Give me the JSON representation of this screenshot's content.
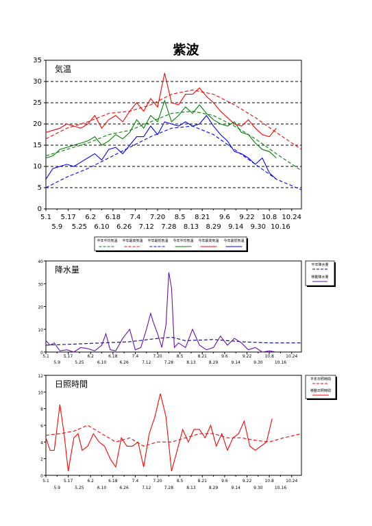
{
  "title": "紫波",
  "chart_data": [
    {
      "type": "line",
      "title": "気温",
      "ylim": [
        0,
        35
      ],
      "yticks": [
        "0",
        "5",
        "10",
        "15",
        "20",
        "25",
        "30",
        "35"
      ],
      "x_tick_labels_row1": [
        "5.1",
        "5.17",
        "6.2",
        "6.18",
        "7.4",
        "7.20",
        "8.5",
        "8.21",
        "9.6",
        "9.22",
        "10.8",
        "10.24"
      ],
      "x_tick_labels_row2": [
        "5.9",
        "5.25",
        "6.10",
        "6.26",
        "7.12",
        "7.28",
        "8.13",
        "8.29",
        "9.14",
        "9.30",
        "10.16"
      ],
      "grid": "horizontal-dashed",
      "legend_position": "bottom",
      "x_range_days": [
        0,
        183
      ],
      "series": [
        {
          "name": "平年平均気温",
          "color": "#008000",
          "style": "dashed",
          "x": [
            0,
            15,
            30,
            45,
            60,
            75,
            90,
            105,
            120,
            135,
            150,
            165,
            183
          ],
          "values": [
            12.5,
            14.0,
            15.5,
            17.5,
            18.5,
            20.5,
            22.5,
            23.0,
            22.0,
            19.5,
            16.5,
            13.0,
            9.0
          ]
        },
        {
          "name": "平年最高気温",
          "color": "#ff0000",
          "style": "dashed",
          "x": [
            0,
            15,
            30,
            45,
            60,
            75,
            90,
            105,
            120,
            135,
            150,
            165,
            183
          ],
          "values": [
            16.5,
            19.0,
            20.5,
            22.5,
            23.0,
            24.5,
            27.0,
            28.0,
            27.0,
            24.5,
            21.5,
            18.0,
            14.0
          ]
        },
        {
          "name": "平年最低気温",
          "color": "#0000ff",
          "style": "dashed",
          "x": [
            0,
            15,
            30,
            45,
            60,
            75,
            90,
            105,
            120,
            135,
            150,
            165,
            183
          ],
          "values": [
            5.0,
            7.5,
            9.5,
            12.0,
            14.5,
            17.0,
            19.0,
            19.5,
            17.5,
            14.0,
            10.5,
            7.0,
            4.5
          ]
        },
        {
          "name": "今年平均気温",
          "color": "#008000",
          "style": "solid",
          "x": [
            0,
            5,
            10,
            15,
            20,
            25,
            30,
            35,
            40,
            45,
            50,
            55,
            60,
            65,
            70,
            75,
            80,
            85,
            90,
            95,
            100,
            105,
            110,
            115,
            120,
            125,
            130,
            135,
            140,
            145,
            150,
            155,
            160,
            165
          ],
          "values": [
            12,
            12.5,
            14,
            14.5,
            15,
            15.5,
            16,
            17,
            15,
            16,
            17.5,
            16.5,
            18,
            21,
            19,
            22,
            20.5,
            25.5,
            20.5,
            22,
            24,
            22.5,
            24.5,
            22.5,
            21,
            20,
            19.5,
            20.5,
            18,
            17.5,
            15.5,
            14,
            13.5,
            12
          ]
        },
        {
          "name": "今年最高気温",
          "color": "#ff0000",
          "style": "solid",
          "x": [
            0,
            5,
            10,
            15,
            20,
            25,
            30,
            35,
            40,
            45,
            50,
            55,
            60,
            65,
            70,
            75,
            80,
            85,
            90,
            95,
            100,
            105,
            110,
            115,
            120,
            125,
            130,
            135,
            140,
            145,
            150,
            155,
            160,
            165
          ],
          "values": [
            18,
            18.5,
            19,
            20,
            19.5,
            19,
            20,
            22,
            19,
            21,
            22,
            20.5,
            23,
            25,
            23,
            26,
            24,
            32,
            25,
            24.5,
            27,
            27,
            28.5,
            26.5,
            25,
            23,
            21.5,
            20,
            19.5,
            21,
            19,
            17.5,
            17,
            19
          ]
        },
        {
          "name": "今年最低気温",
          "color": "#0000ff",
          "style": "solid",
          "x": [
            0,
            5,
            10,
            15,
            20,
            25,
            30,
            35,
            40,
            45,
            50,
            55,
            60,
            65,
            70,
            75,
            80,
            85,
            90,
            95,
            100,
            105,
            110,
            115,
            120,
            125,
            130,
            135,
            140,
            145,
            150,
            155,
            160,
            165
          ],
          "values": [
            7,
            9.5,
            10,
            10.5,
            10,
            11,
            12,
            13,
            11.5,
            14,
            14.5,
            13,
            15,
            17,
            17,
            19.5,
            17.5,
            20.5,
            20,
            19.5,
            20.5,
            19.5,
            20,
            22,
            19.5,
            17.5,
            16,
            13.5,
            13,
            12,
            10.5,
            12,
            8.5,
            7
          ]
        }
      ]
    },
    {
      "type": "line",
      "title": "降水量",
      "ylim": [
        0,
        40
      ],
      "yticks": [
        "0",
        "10",
        "20",
        "30",
        "40"
      ],
      "x_tick_labels_row1": [
        "5.1",
        "5.17",
        "6.2",
        "6.18",
        "7.4",
        "7.20",
        "8.5",
        "8.21",
        "9.6",
        "9.22",
        "10.8",
        "10.24"
      ],
      "x_tick_labels_row2": [
        "5.9",
        "5.25",
        "6.10",
        "6.26",
        "7.12",
        "7.28",
        "8.13",
        "8.29",
        "9.14",
        "9.30",
        "10.16"
      ],
      "legend_position": "right",
      "x_range_days": [
        0,
        183
      ],
      "series": [
        {
          "name": "平年降水量",
          "color": "#000080",
          "style": "dashed",
          "x": [
            0,
            20,
            40,
            60,
            80,
            90,
            100,
            120,
            140,
            160,
            183
          ],
          "values": [
            3.0,
            3.5,
            4.0,
            4.5,
            6.0,
            6.5,
            5.0,
            5.5,
            4.5,
            4.0,
            4.0
          ]
        },
        {
          "name": "移動降水量",
          "color": "#6a0dad",
          "style": "solid",
          "x": [
            0,
            3,
            6,
            10,
            15,
            20,
            25,
            30,
            35,
            40,
            43,
            46,
            50,
            55,
            60,
            64,
            68,
            72,
            75,
            77,
            80,
            83,
            86,
            88,
            90,
            92,
            95,
            100,
            105,
            110,
            115,
            120,
            125,
            130,
            135,
            140,
            145,
            150,
            155,
            160,
            165
          ],
          "values": [
            5,
            3,
            4,
            0.5,
            1,
            0,
            2,
            1.5,
            0.5,
            3,
            8,
            1,
            0.5,
            6,
            10,
            1,
            2,
            10,
            17,
            13,
            8,
            2,
            12,
            35,
            28,
            2,
            4,
            2,
            10,
            3,
            1,
            2,
            7,
            3,
            6,
            4,
            1,
            2,
            0,
            0.5,
            0
          ]
        }
      ]
    },
    {
      "type": "line",
      "title": "日照時間",
      "ylim": [
        0,
        12
      ],
      "yticks": [
        "0",
        "2",
        "4",
        "6",
        "8",
        "10",
        "12"
      ],
      "x_tick_labels_row1": [
        "5.1",
        "5.17",
        "6.2",
        "6.18",
        "7.4",
        "7.20",
        "8.5",
        "8.21",
        "9.6",
        "9.22",
        "10.8",
        "10.24"
      ],
      "x_tick_labels_row2": [
        "5.9",
        "5.25",
        "6.10",
        "6.26",
        "7.12",
        "7.28",
        "8.13",
        "8.29",
        "9.14",
        "9.30",
        "10.16"
      ],
      "legend_position": "right",
      "x_range_days": [
        0,
        183
      ],
      "series": [
        {
          "name": "平年日照時間",
          "color": "#ff0000",
          "style": "dashed",
          "x": [
            0,
            10,
            20,
            30,
            40,
            50,
            60,
            70,
            80,
            90,
            100,
            110,
            120,
            130,
            140,
            150,
            160,
            170,
            183
          ],
          "values": [
            4.8,
            5.0,
            5.3,
            6.0,
            5.0,
            4.0,
            4.5,
            3.5,
            4.0,
            4.0,
            4.5,
            5.0,
            5.0,
            4.5,
            4.5,
            4.2,
            4.0,
            4.5,
            5.0
          ]
        },
        {
          "name": "移動日照時間",
          "color": "#ff0000",
          "style": "solid",
          "x": [
            0,
            3,
            6,
            10,
            13,
            16,
            20,
            23,
            26,
            30,
            34,
            38,
            42,
            46,
            50,
            54,
            58,
            62,
            66,
            70,
            74,
            78,
            82,
            86,
            90,
            94,
            98,
            102,
            106,
            110,
            114,
            118,
            122,
            126,
            130,
            134,
            138,
            142,
            146,
            150,
            154,
            158,
            162
          ],
          "values": [
            4.5,
            3,
            3,
            8.5,
            5,
            0.5,
            4.5,
            5,
            3,
            3.5,
            5,
            4,
            3.5,
            2,
            1,
            4.5,
            3.5,
            3.5,
            4,
            1,
            5,
            7,
            9.8,
            7,
            0.5,
            3,
            5.5,
            4,
            5.5,
            5.5,
            4.5,
            6,
            3.5,
            5,
            3,
            4.5,
            5,
            6.5,
            3.5,
            3,
            3.5,
            4,
            6.8
          ]
        }
      ]
    }
  ]
}
